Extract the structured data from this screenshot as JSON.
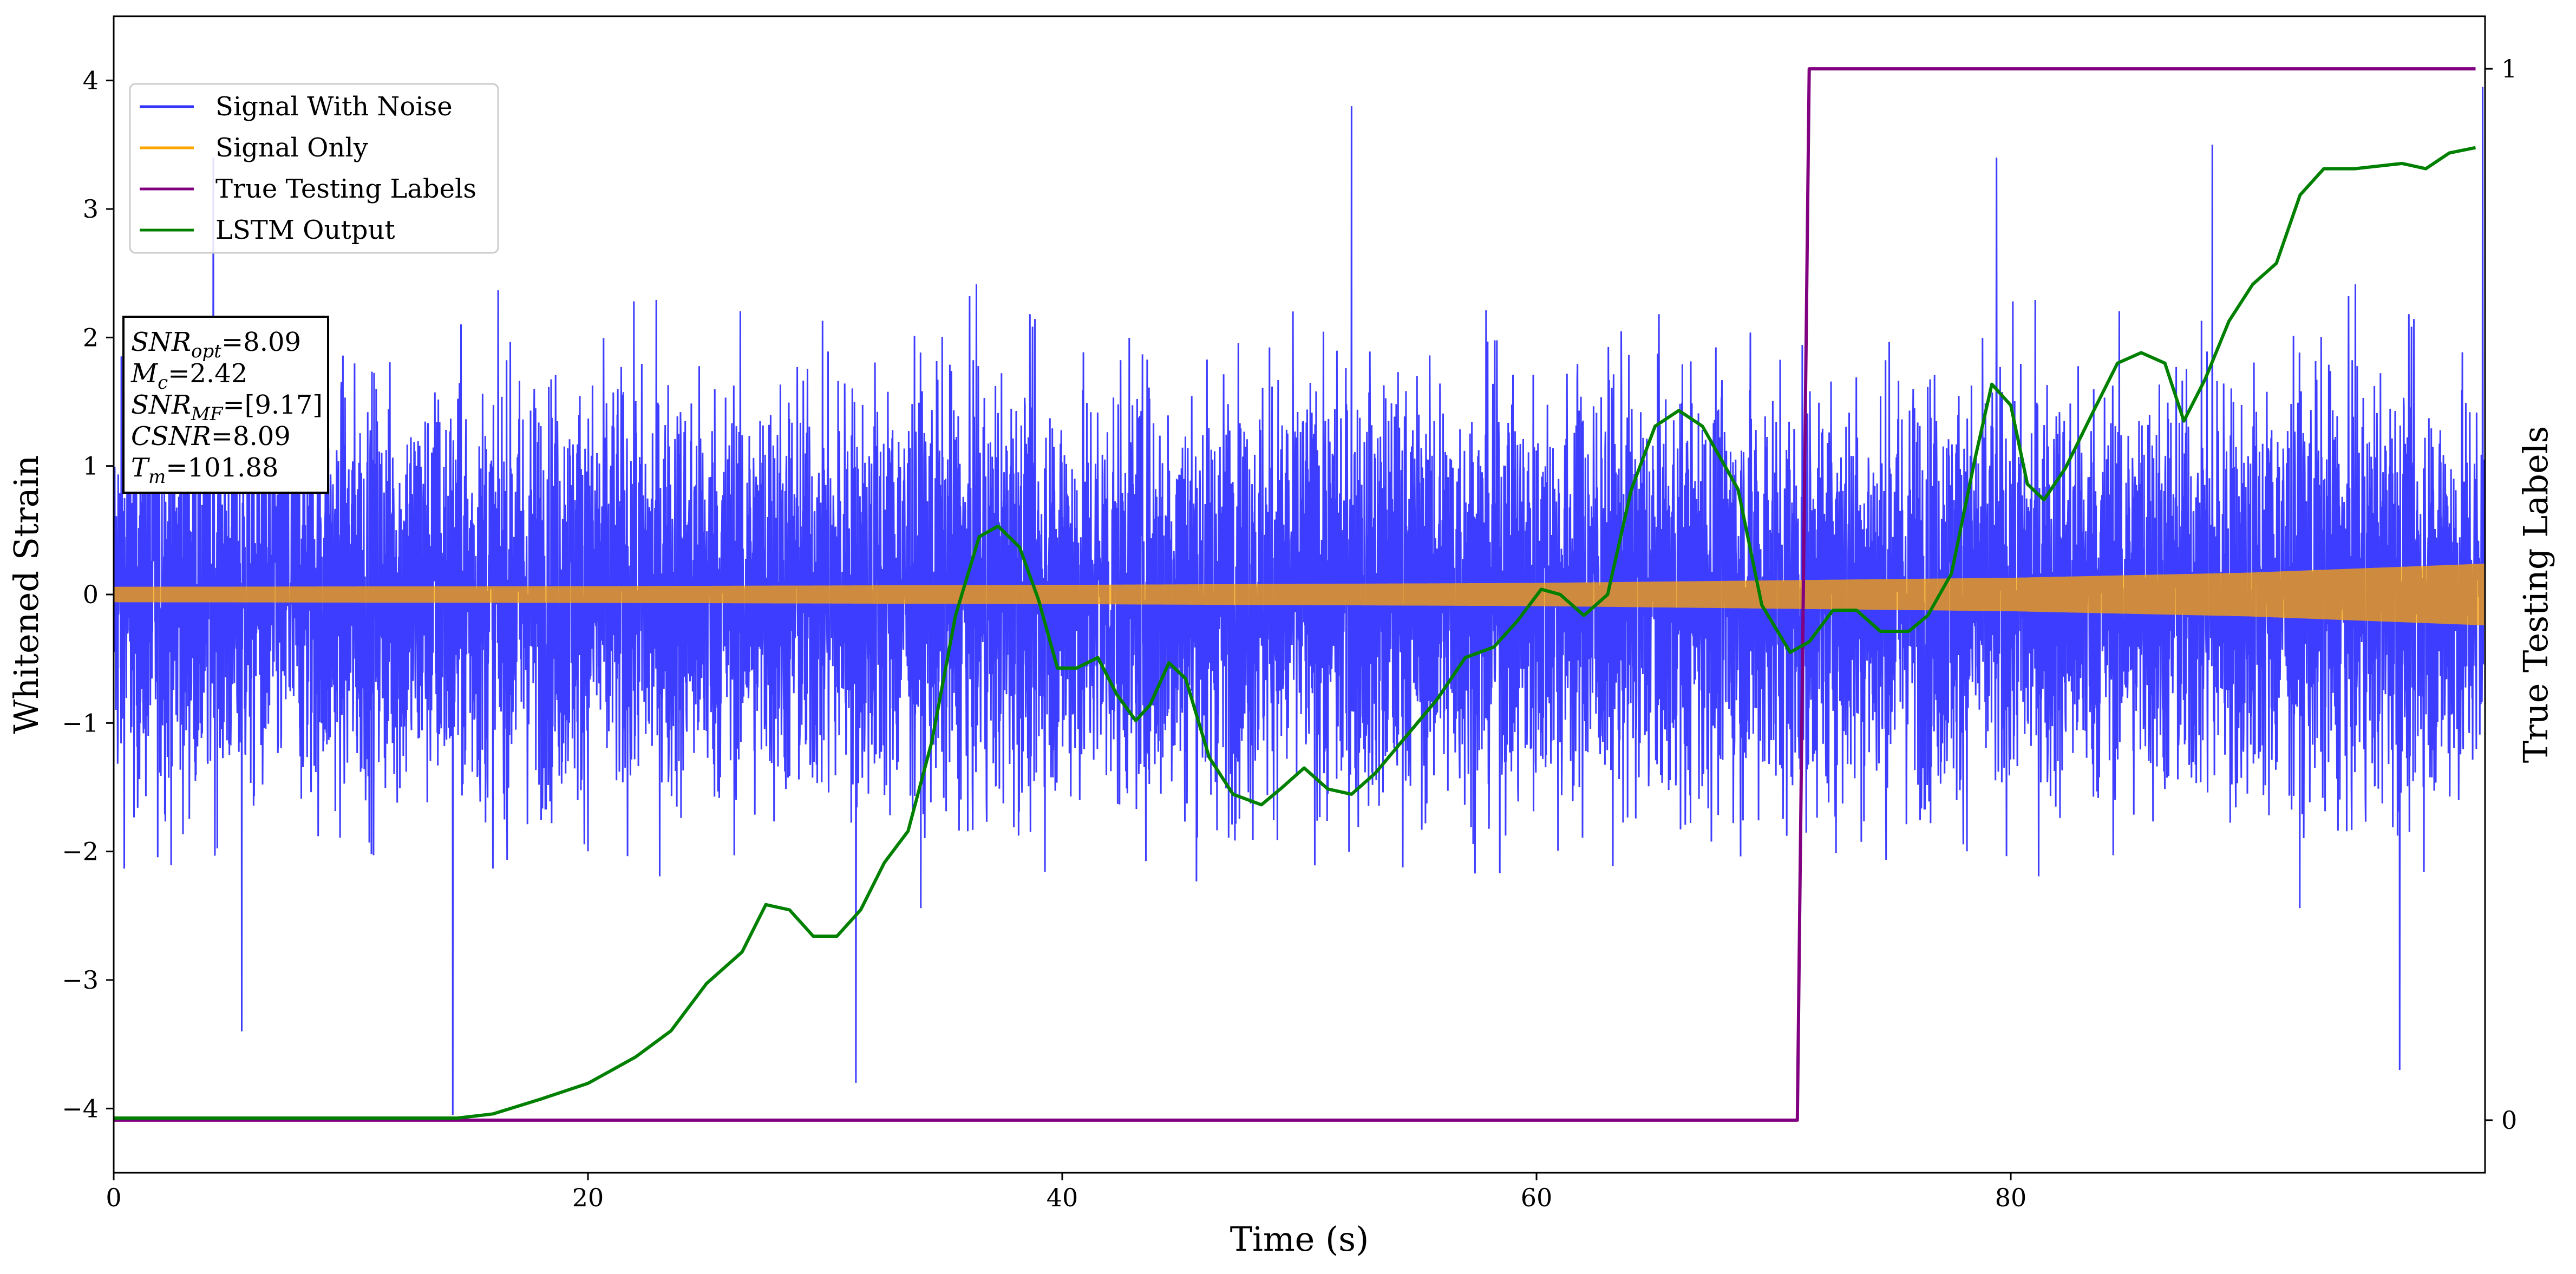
{
  "chart_data": {
    "type": "line",
    "xlabel": "Time (s)",
    "ylabel": "Whitened Strain",
    "y2label": "True Testing Labels",
    "xlim": [
      0,
      100
    ],
    "ylim": [
      -4.5,
      4.5
    ],
    "y2lim": [
      -0.05,
      1.05
    ],
    "x_ticks": [
      {
        "value": 0,
        "label": "0"
      },
      {
        "value": 20,
        "label": "20"
      },
      {
        "value": 40,
        "label": "40"
      },
      {
        "value": 60,
        "label": "60"
      },
      {
        "value": 80,
        "label": "80"
      }
    ],
    "y_ticks": [
      {
        "value": -4,
        "label": "−4"
      },
      {
        "value": -3,
        "label": "−3"
      },
      {
        "value": -2,
        "label": "−2"
      },
      {
        "value": -1,
        "label": "−1"
      },
      {
        "value": 0,
        "label": "0"
      },
      {
        "value": 1,
        "label": "1"
      },
      {
        "value": 2,
        "label": "2"
      },
      {
        "value": 3,
        "label": "3"
      },
      {
        "value": 4,
        "label": "4"
      }
    ],
    "y2_ticks": [
      {
        "value": 0,
        "label": "0"
      },
      {
        "value": 1,
        "label": "1"
      }
    ],
    "grid": false,
    "legend_position": "top-left",
    "series": [
      {
        "name": "Signal With Noise",
        "axis": "left",
        "color": "#3333ff",
        "kind": "noise",
        "typical_amplitude": [
          -1.3,
          1.3
        ],
        "range": [
          -4.05,
          3.95
        ],
        "notable_peaks": [
          {
            "x": 4.2,
            "y": 3.4
          },
          {
            "x": 5.4,
            "y": -3.4
          },
          {
            "x": 14.3,
            "y": -4.05
          },
          {
            "x": 52.2,
            "y": 3.8
          },
          {
            "x": 31.3,
            "y": -3.8
          },
          {
            "x": 79.4,
            "y": 3.4
          },
          {
            "x": 88.5,
            "y": 3.5
          },
          {
            "x": 96.4,
            "y": -3.7
          },
          {
            "x": 99.9,
            "y": 3.95
          }
        ]
      },
      {
        "name": "Signal Only",
        "axis": "left",
        "color": "#ffa500",
        "kind": "envelope",
        "envelope": [
          {
            "x": 0,
            "amp": 0.06
          },
          {
            "x": 20,
            "amp": 0.065
          },
          {
            "x": 40,
            "amp": 0.075
          },
          {
            "x": 60,
            "amp": 0.09
          },
          {
            "x": 80,
            "amp": 0.13
          },
          {
            "x": 90,
            "amp": 0.17
          },
          {
            "x": 100,
            "amp": 0.24
          }
        ]
      },
      {
        "name": "True Testing Labels",
        "axis": "right",
        "color": "#800080",
        "kind": "line",
        "points": [
          {
            "x": 0,
            "y": 0
          },
          {
            "x": 71.0,
            "y": 0
          },
          {
            "x": 71.5,
            "y": 1
          },
          {
            "x": 99.6,
            "y": 1
          }
        ]
      },
      {
        "name": "LSTM Output",
        "axis": "right",
        "color": "#008000",
        "kind": "line",
        "points": [
          {
            "x": 0,
            "y": 0.002
          },
          {
            "x": 14.5,
            "y": 0.002
          },
          {
            "x": 16,
            "y": 0.006
          },
          {
            "x": 18,
            "y": 0.02
          },
          {
            "x": 20,
            "y": 0.035
          },
          {
            "x": 22,
            "y": 0.06
          },
          {
            "x": 23.5,
            "y": 0.085
          },
          {
            "x": 25,
            "y": 0.13
          },
          {
            "x": 26.5,
            "y": 0.16
          },
          {
            "x": 27.5,
            "y": 0.205
          },
          {
            "x": 28.5,
            "y": 0.2
          },
          {
            "x": 29.5,
            "y": 0.175
          },
          {
            "x": 30.5,
            "y": 0.175
          },
          {
            "x": 31.5,
            "y": 0.2
          },
          {
            "x": 32.5,
            "y": 0.245
          },
          {
            "x": 33.5,
            "y": 0.275
          },
          {
            "x": 34.5,
            "y": 0.36
          },
          {
            "x": 35.5,
            "y": 0.48
          },
          {
            "x": 36.5,
            "y": 0.555
          },
          {
            "x": 37.3,
            "y": 0.565
          },
          {
            "x": 38.2,
            "y": 0.545
          },
          {
            "x": 39,
            "y": 0.495
          },
          {
            "x": 39.8,
            "y": 0.43
          },
          {
            "x": 40.6,
            "y": 0.43
          },
          {
            "x": 41.5,
            "y": 0.44
          },
          {
            "x": 42.3,
            "y": 0.405
          },
          {
            "x": 43.1,
            "y": 0.38
          },
          {
            "x": 43.7,
            "y": 0.395
          },
          {
            "x": 44.5,
            "y": 0.435
          },
          {
            "x": 45.2,
            "y": 0.42
          },
          {
            "x": 46.2,
            "y": 0.345
          },
          {
            "x": 47.2,
            "y": 0.31
          },
          {
            "x": 48.4,
            "y": 0.3
          },
          {
            "x": 49.2,
            "y": 0.315
          },
          {
            "x": 50.2,
            "y": 0.335
          },
          {
            "x": 51.2,
            "y": 0.315
          },
          {
            "x": 52.2,
            "y": 0.31
          },
          {
            "x": 53.2,
            "y": 0.33
          },
          {
            "x": 54.5,
            "y": 0.365
          },
          {
            "x": 55.8,
            "y": 0.4
          },
          {
            "x": 57,
            "y": 0.44
          },
          {
            "x": 58.2,
            "y": 0.45
          },
          {
            "x": 59.2,
            "y": 0.475
          },
          {
            "x": 60.2,
            "y": 0.505
          },
          {
            "x": 61,
            "y": 0.5
          },
          {
            "x": 62,
            "y": 0.48
          },
          {
            "x": 63,
            "y": 0.5
          },
          {
            "x": 64,
            "y": 0.6
          },
          {
            "x": 65,
            "y": 0.66
          },
          {
            "x": 66,
            "y": 0.675
          },
          {
            "x": 67,
            "y": 0.66
          },
          {
            "x": 68.5,
            "y": 0.6
          },
          {
            "x": 69.5,
            "y": 0.49
          },
          {
            "x": 70.7,
            "y": 0.445
          },
          {
            "x": 71.5,
            "y": 0.455
          },
          {
            "x": 72.5,
            "y": 0.485
          },
          {
            "x": 73.5,
            "y": 0.485
          },
          {
            "x": 74.5,
            "y": 0.465
          },
          {
            "x": 75.7,
            "y": 0.465
          },
          {
            "x": 76.5,
            "y": 0.48
          },
          {
            "x": 77.5,
            "y": 0.52
          },
          {
            "x": 78.5,
            "y": 0.63
          },
          {
            "x": 79.2,
            "y": 0.7
          },
          {
            "x": 80.0,
            "y": 0.68
          },
          {
            "x": 80.7,
            "y": 0.605
          },
          {
            "x": 81.4,
            "y": 0.59
          },
          {
            "x": 82.3,
            "y": 0.62
          },
          {
            "x": 83.5,
            "y": 0.675
          },
          {
            "x": 84.5,
            "y": 0.72
          },
          {
            "x": 85.5,
            "y": 0.73
          },
          {
            "x": 86.5,
            "y": 0.72
          },
          {
            "x": 87.3,
            "y": 0.665
          },
          {
            "x": 88.2,
            "y": 0.705
          },
          {
            "x": 89.2,
            "y": 0.76
          },
          {
            "x": 90.2,
            "y": 0.795
          },
          {
            "x": 91.2,
            "y": 0.815
          },
          {
            "x": 92.2,
            "y": 0.88
          },
          {
            "x": 93.2,
            "y": 0.905
          },
          {
            "x": 94.5,
            "y": 0.905
          },
          {
            "x": 96.5,
            "y": 0.91
          },
          {
            "x": 97.5,
            "y": 0.905
          },
          {
            "x": 98.5,
            "y": 0.92
          },
          {
            "x": 99.6,
            "y": 0.925
          }
        ]
      }
    ],
    "annotation_lines": [
      {
        "italic": "SNR",
        "sub": "opt",
        "rest": "=8.09"
      },
      {
        "italic": "M",
        "sub": "c",
        "rest": "=2.42"
      },
      {
        "italic": "SNR",
        "sub": "MF",
        "rest": "=[9.17]"
      },
      {
        "italic": "CSNR",
        "sub": "",
        "rest": "=8.09"
      },
      {
        "italic": "T",
        "sub": "m",
        "rest": "=101.88"
      }
    ]
  }
}
